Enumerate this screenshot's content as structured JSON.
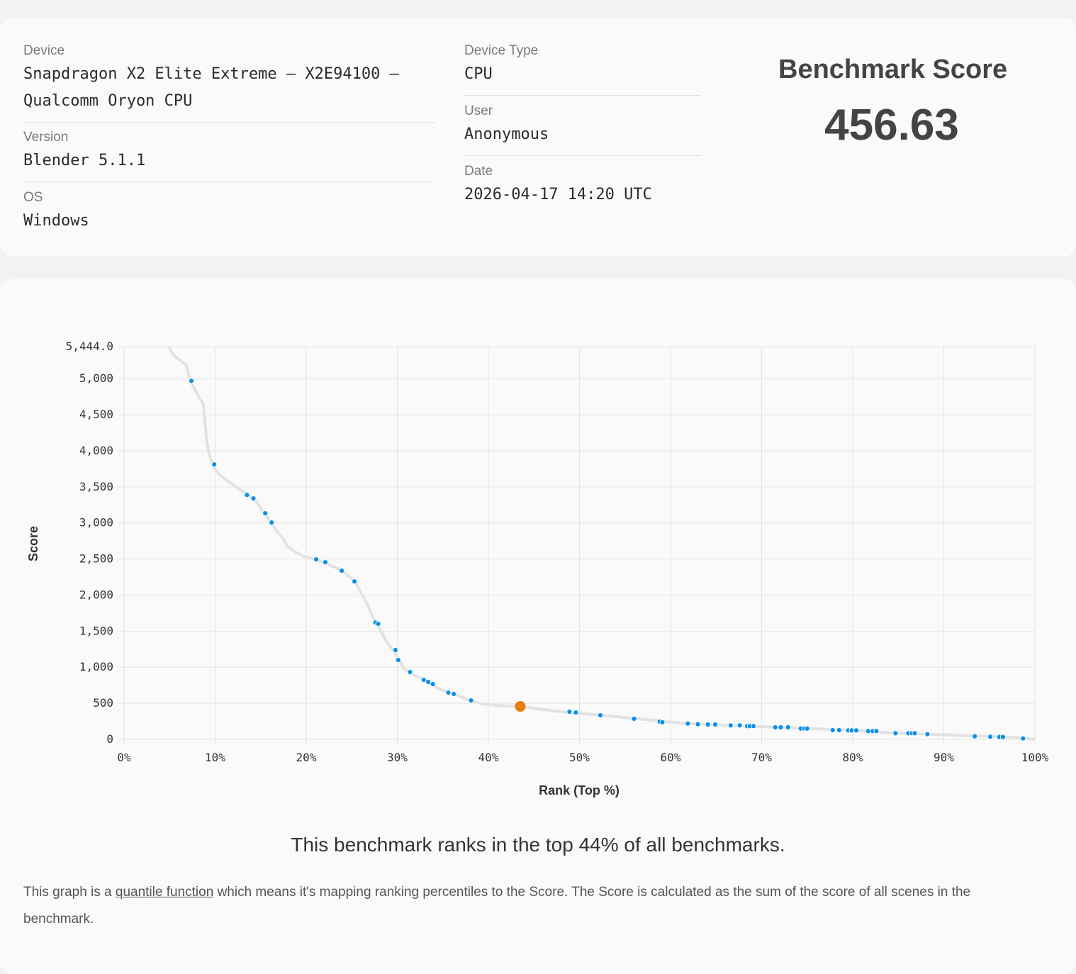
{
  "info": {
    "device_label": "Device",
    "device_value": "Snapdragon X2 Elite Extreme – X2E94100 – Qualcomm Oryon CPU",
    "version_label": "Version",
    "version_value": "Blender 5.1.1",
    "os_label": "OS",
    "os_value": "Windows",
    "device_type_label": "Device Type",
    "device_type_value": "CPU",
    "user_label": "User",
    "user_value": "Anonymous",
    "date_label": "Date",
    "date_value": "2026-04-17 14:20 UTC",
    "score_title": "Benchmark Score",
    "score_value": "456.63"
  },
  "summary": "This benchmark ranks in the top 44% of all benchmarks.",
  "description": {
    "before": "This graph is a ",
    "link": "quantile function",
    "after": " which means it's mapping ranking percentiles to the Score. The Score is calculated as the sum of the score of all scenes in the benchmark."
  },
  "colors": {
    "point": "#0a8fe8",
    "highlight": "#e87d0d",
    "curve": "#e2e2e2",
    "grid": "#e4e4e4"
  },
  "chart_data": {
    "type": "scatter",
    "xlabel": "Rank (Top %)",
    "ylabel": "Score",
    "xlim": [
      0,
      100
    ],
    "ylim": [
      0,
      5444.0
    ],
    "grid": true,
    "x_ticks": [
      0,
      10,
      20,
      30,
      40,
      50,
      60,
      70,
      80,
      90,
      100
    ],
    "x_tick_labels": [
      "0%",
      "10%",
      "20%",
      "30%",
      "40%",
      "50%",
      "60%",
      "70%",
      "80%",
      "90%",
      "100%"
    ],
    "y_ticks": [
      0,
      500,
      1000,
      1500,
      2000,
      2500,
      3000,
      3500,
      4000,
      4500,
      5000,
      5444
    ],
    "y_tick_labels": [
      "0",
      "500",
      "1,000",
      "1,500",
      "2,000",
      "2,500",
      "3,000",
      "3,500",
      "4,000",
      "4,500",
      "5,000",
      "5,444.0"
    ],
    "curve": [
      [
        4.9,
        5444
      ],
      [
        5.4,
        5334
      ],
      [
        6.8,
        5187
      ],
      [
        7.2,
        5000
      ],
      [
        8.0,
        4794
      ],
      [
        8.7,
        4646
      ],
      [
        9.1,
        4106
      ],
      [
        9.5,
        3890
      ],
      [
        9.9,
        3762
      ],
      [
        10.5,
        3664
      ],
      [
        12.1,
        3517
      ],
      [
        12.9,
        3448
      ],
      [
        14.4,
        3320
      ],
      [
        15.3,
        3153
      ],
      [
        16.3,
        2976
      ],
      [
        16.8,
        2878
      ],
      [
        17.5,
        2780
      ],
      [
        17.9,
        2682
      ],
      [
        18.7,
        2603
      ],
      [
        19.8,
        2534
      ],
      [
        21.0,
        2495
      ],
      [
        22.6,
        2416
      ],
      [
        23.7,
        2357
      ],
      [
        25.3,
        2200
      ],
      [
        26.1,
        2014
      ],
      [
        26.7,
        1876
      ],
      [
        27.5,
        1640
      ],
      [
        28.0,
        1552
      ],
      [
        28.8,
        1356
      ],
      [
        29.6,
        1228
      ],
      [
        30.4,
        1061
      ],
      [
        30.7,
        982
      ],
      [
        31.5,
        914
      ],
      [
        33.1,
        815
      ],
      [
        34.6,
        697
      ],
      [
        36.2,
        638
      ],
      [
        37.7,
        550
      ],
      [
        39.3,
        491
      ],
      [
        40.9,
        471
      ],
      [
        43.5,
        457
      ],
      [
        45.5,
        422
      ],
      [
        48.6,
        373
      ],
      [
        52.5,
        334
      ],
      [
        56.4,
        285
      ],
      [
        61.1,
        226
      ],
      [
        64.2,
        206
      ],
      [
        69.6,
        177
      ],
      [
        75.9,
        147
      ],
      [
        79.8,
        128
      ],
      [
        84.4,
        88
      ],
      [
        89.1,
        69
      ],
      [
        95.3,
        39
      ],
      [
        97.7,
        29
      ],
      [
        100,
        0
      ]
    ],
    "points": [
      [
        7.4,
        4970
      ],
      [
        9.9,
        3811
      ],
      [
        13.5,
        3389
      ],
      [
        14.2,
        3340
      ],
      [
        15.5,
        3134
      ],
      [
        16.2,
        3006
      ],
      [
        21.1,
        2495
      ],
      [
        22.1,
        2456
      ],
      [
        23.9,
        2338
      ],
      [
        25.3,
        2190
      ],
      [
        27.6,
        1621
      ],
      [
        27.9,
        1601
      ],
      [
        29.8,
        1238
      ],
      [
        30.1,
        1100
      ],
      [
        31.4,
        933
      ],
      [
        32.9,
        825
      ],
      [
        33.4,
        796
      ],
      [
        33.9,
        766
      ],
      [
        35.6,
        648
      ],
      [
        36.2,
        629
      ],
      [
        38.1,
        540
      ],
      [
        48.9,
        383
      ],
      [
        49.6,
        373
      ],
      [
        52.3,
        334
      ],
      [
        56.0,
        285
      ],
      [
        58.8,
        246
      ],
      [
        59.1,
        236
      ],
      [
        61.9,
        219
      ],
      [
        63.0,
        209
      ],
      [
        64.1,
        206
      ],
      [
        64.9,
        206
      ],
      [
        66.6,
        193
      ],
      [
        67.6,
        193
      ],
      [
        68.4,
        184
      ],
      [
        68.7,
        184
      ],
      [
        69.1,
        184
      ],
      [
        71.5,
        167
      ],
      [
        72.1,
        167
      ],
      [
        72.9,
        167
      ],
      [
        74.3,
        150
      ],
      [
        74.7,
        150
      ],
      [
        75.0,
        150
      ],
      [
        77.8,
        128
      ],
      [
        78.5,
        128
      ],
      [
        79.5,
        124
      ],
      [
        79.9,
        124
      ],
      [
        80.4,
        124
      ],
      [
        81.7,
        115
      ],
      [
        82.2,
        115
      ],
      [
        82.6,
        115
      ],
      [
        84.7,
        85
      ],
      [
        86.1,
        85
      ],
      [
        86.5,
        85
      ],
      [
        86.8,
        85
      ],
      [
        88.2,
        72
      ],
      [
        93.4,
        42
      ],
      [
        95.1,
        36
      ],
      [
        96.1,
        33
      ],
      [
        96.5,
        33
      ],
      [
        98.7,
        13
      ]
    ],
    "highlight": {
      "x": 43.5,
      "y": 456.63
    }
  }
}
